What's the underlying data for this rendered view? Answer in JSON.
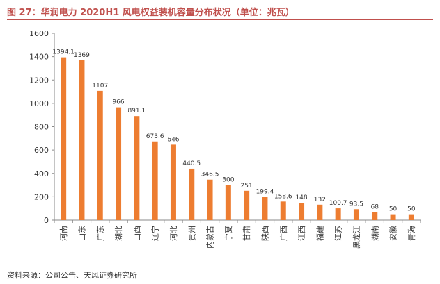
{
  "figure": {
    "title": "图 27：华润电力 2020H1 风电权益装机容量分布状况（单位：兆瓦）",
    "source": "资料来源：公司公告、天风证券研究所"
  },
  "chart_data": {
    "type": "bar",
    "title": "",
    "xlabel": "",
    "ylabel": "",
    "ylim": [
      0,
      1600
    ],
    "yticks": [
      0,
      200,
      400,
      600,
      800,
      1000,
      1200,
      1400,
      1600
    ],
    "grid": false,
    "legend": "none",
    "bar_color": "#ed7d31",
    "categories": [
      "河南",
      "山东",
      "广东",
      "湖北",
      "山西",
      "辽宁",
      "河北",
      "贵州",
      "内蒙古",
      "宁夏",
      "甘肃",
      "陕西",
      "广西",
      "江西",
      "福建",
      "江苏",
      "黑龙江",
      "湖南",
      "安徽",
      "青海"
    ],
    "values": [
      1394.1,
      1369,
      1107,
      966,
      891.1,
      673.6,
      646,
      440.5,
      346.5,
      300,
      251,
      199.4,
      158.6,
      148,
      132,
      100.7,
      93.5,
      68,
      50,
      50
    ],
    "value_labels": [
      "1394.1",
      "1369",
      "1107",
      "966",
      "891.1",
      "673.6",
      "646",
      "440.5",
      "346.5",
      "300",
      "251",
      "199.4",
      "158.6",
      "148",
      "132",
      "100.7",
      "93.5",
      "68",
      "50",
      "50"
    ]
  }
}
